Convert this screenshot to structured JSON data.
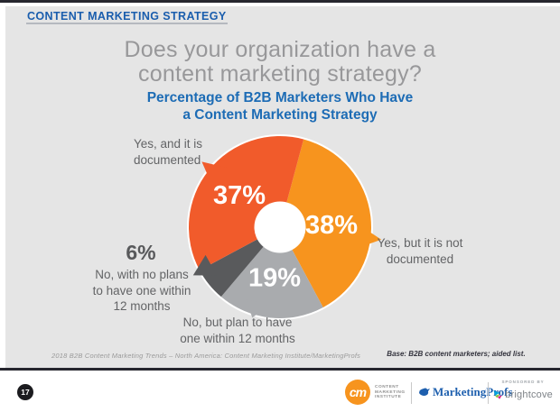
{
  "slide": {
    "eyebrow": "CONTENT MARKETING STRATEGY",
    "title": "Does your organization have a\ncontent marketing strategy?",
    "chart_title": "Percentage of B2B Marketers Who Have\na Content Marketing Strategy",
    "source": "2018 B2B Content Marketing Trends – North America: Content Marketing Institute/MarketingProfs",
    "base_note": "Base: B2B content marketers; aided list.",
    "page_number": "17"
  },
  "chart_data": {
    "type": "pie",
    "donut": true,
    "title": "Percentage of B2B Marketers Who Have a Content Marketing Strategy",
    "start_angle_deg": 15,
    "legend_position": "callouts-around-chart",
    "segments": [
      {
        "label": "Yes, but it is not documented",
        "value": 38,
        "pct_label": "38%",
        "color": "#F7941E",
        "tail_angle_deg": 97,
        "tail_r": 113,
        "label_angle_deg": 88
      },
      {
        "label": "No, but plan to have one within 12 months",
        "value": 19,
        "pct_label": "19%",
        "color": "#A9ABAE",
        "tail_angle_deg": 197,
        "tail_r": 105,
        "label_angle_deg": 186
      },
      {
        "label": "No, with no plans to have one within 12 months",
        "value": 6,
        "pct_label": "",
        "color": "#595A5C",
        "tail_angle_deg": 241,
        "tail_r": 110
      },
      {
        "label": "Yes, and it is documented",
        "value": 37,
        "pct_label": "37%",
        "color": "#F15B2B",
        "tail_angle_deg": 310,
        "tail_r": 113,
        "label_angle_deg": 308
      }
    ],
    "callouts": {
      "yes_documented": "Yes, and it is\ndocumented",
      "yes_not_documented": "Yes, but it is not\ndocumented",
      "no_plans_pct": "6%",
      "no_plans": "No, with no plans\nto have one within\n12 months",
      "plan_within": "No, but plan to have\none within 12 months"
    }
  },
  "footer": {
    "cmi_monogram": "cm",
    "cmi_lines": "CONTENT\nMARKETING\nINSTITUTE",
    "marketingprofs": "MarketingProfs",
    "sponsored_by": "SPONSORED BY",
    "brightcove": "brightcove"
  },
  "colors": {
    "accent_blue": "#1d6cb5",
    "title_gray": "#98989a",
    "slide_bg": "#E5E5E5",
    "strip_dark": "#26262e"
  }
}
